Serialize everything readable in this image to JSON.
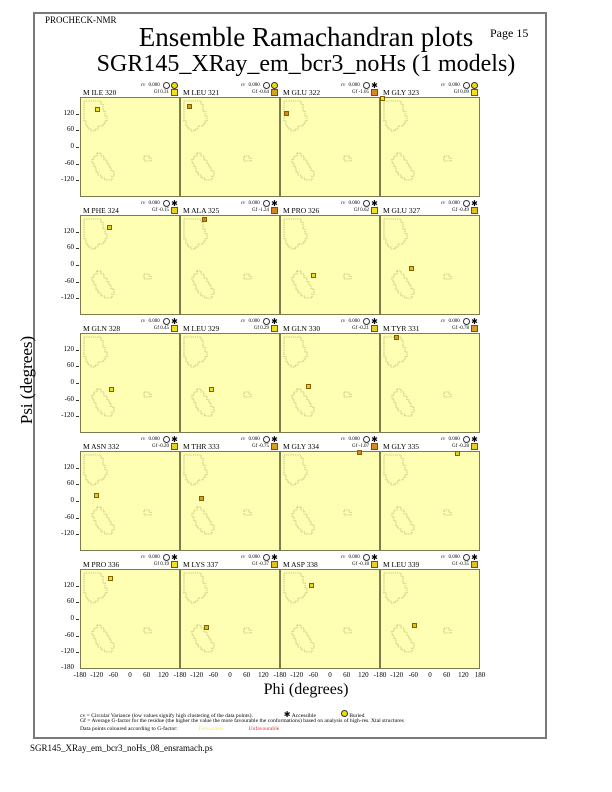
{
  "header": {
    "program": "PROCHECK-NMR",
    "page": "Page 15",
    "title": "Ensemble Ramachandran plots",
    "subtitle": "SGR145_XRay_em_bcr3_noHs (1 models)"
  },
  "axes": {
    "ylabel": "Psi (degrees)",
    "xlabel": "Phi (degrees)",
    "yticks": [
      "120",
      "60",
      "0",
      "-60",
      "-120"
    ],
    "ytick_bottom": "-180",
    "xticks": [
      "-180",
      "-120",
      "-60",
      "0",
      "60",
      "120"
    ],
    "xtick_last": "180"
  },
  "legend": {
    "line1": "cv = Circular Variance (low values signify high clustering of the data points).",
    "accessible": "Accessible",
    "buried": "Buried",
    "line2": "Gf = Average G-factor for the residue (the higher the value the more favourable the conformations) based on analysis of high-res. Xtal structures",
    "line3": "Data points coloured according to G-factor:",
    "favourable": "Favourable",
    "unfavourable": "Unfavourable",
    "favourable_color": "#ffff40",
    "unfavourable_color": "#e03030"
  },
  "footer": "SGR145_XRay_em_bcr3_noHs_08_ensramach.ps",
  "chart_data": {
    "type": "scatter",
    "title": "Ensemble Ramachandran plots",
    "subtitle": "SGR145_XRay_em_bcr3_noHs (1 models)",
    "xlabel": "Phi (degrees)",
    "ylabel": "Psi (degrees)",
    "xlim": [
      -180,
      180
    ],
    "ylim": [
      -180,
      180
    ],
    "layout": "5 rows x 4 columns of small-multiple panels",
    "panels": [
      {
        "residue": "M ILE 320",
        "cv": "0.000",
        "gf": "0.31",
        "burial": "buried",
        "phi": -122,
        "psi": 137,
        "color": "#f0e020"
      },
      {
        "residue": "M LEU 321",
        "cv": "0.000",
        "gf": "-0.64",
        "burial": "buried",
        "phi": -148,
        "psi": 148,
        "color": "#d8a020"
      },
      {
        "residue": "M GLU 322",
        "cv": "0.000",
        "gf": "-1.05",
        "burial": "accessible",
        "phi": -162,
        "psi": 126,
        "color": "#d88820"
      },
      {
        "residue": "M GLY 323",
        "cv": "0.000",
        "gf": "0.09",
        "burial": "buried",
        "phi": -176,
        "psi": 178,
        "color": "#f0e020"
      },
      {
        "residue": "M PHE 324",
        "cv": "0.000",
        "gf": "-0.15",
        "burial": "accessible",
        "phi": -76,
        "psi": 138,
        "color": "#e8d020"
      },
      {
        "residue": "M ALA 325",
        "cv": "0.000",
        "gf": "-1.24",
        "burial": "accessible",
        "phi": -94,
        "psi": 166,
        "color": "#d88020"
      },
      {
        "residue": "M PRO 326",
        "cv": "0.000",
        "gf": "0.62",
        "burial": "accessible",
        "phi": -62,
        "psi": -34,
        "color": "#f0e020"
      },
      {
        "residue": "M GLU 327",
        "cv": "0.000",
        "gf": "-0.49",
        "burial": "accessible",
        "phi": -72,
        "psi": -10,
        "color": "#e0c020"
      },
      {
        "residue": "M GLN 328",
        "cv": "0.000",
        "gf": "0.45",
        "burial": "accessible",
        "phi": -72,
        "psi": -18,
        "color": "#f0e020"
      },
      {
        "residue": "M LEU 329",
        "cv": "0.000",
        "gf": "0.29",
        "burial": "accessible",
        "phi": -72,
        "psi": -18,
        "color": "#f0e020"
      },
      {
        "residue": "M GLN 330",
        "cv": "0.000",
        "gf": "-0.21",
        "burial": "accessible",
        "phi": -80,
        "psi": -8,
        "color": "#e8d020"
      },
      {
        "residue": "M TYR 331",
        "cv": "0.000",
        "gf": "-0.78",
        "burial": "accessible",
        "phi": -126,
        "psi": 166,
        "color": "#d8a020"
      },
      {
        "residue": "M ASN 332",
        "cv": "0.000",
        "gf": "-0.20",
        "burial": "accessible",
        "phi": -124,
        "psi": 22,
        "color": "#e8d020"
      },
      {
        "residue": "M THR 333",
        "cv": "0.000",
        "gf": "-0.75",
        "burial": "accessible",
        "phi": -108,
        "psi": 14,
        "color": "#d8a020"
      },
      {
        "residue": "M GLY 334",
        "cv": "0.000",
        "gf": "-1.07",
        "burial": "accessible",
        "phi": 104,
        "psi": 178,
        "color": "#d88820"
      },
      {
        "residue": "M GLY 335",
        "cv": "0.000",
        "gf": "-0.28",
        "burial": "accessible",
        "phi": 96,
        "psi": 174,
        "color": "#e8d020"
      },
      {
        "residue": "M PRO 336",
        "cv": "0.000",
        "gf": "0.19",
        "burial": "accessible",
        "phi": -74,
        "psi": 148,
        "color": "#f0e020"
      },
      {
        "residue": "M LYS 337",
        "cv": "0.000",
        "gf": "-0.37",
        "burial": "accessible",
        "phi": -90,
        "psi": -28,
        "color": "#e0c020"
      },
      {
        "residue": "M ASP 338",
        "cv": "0.000",
        "gf": "-0.18",
        "burial": "accessible",
        "phi": -72,
        "psi": 126,
        "color": "#e8d020"
      },
      {
        "residue": "M LEU 339",
        "cv": "0.000",
        "gf": "-0.35",
        "burial": "accessible",
        "phi": -60,
        "psi": -20,
        "color": "#e0c020"
      }
    ]
  }
}
